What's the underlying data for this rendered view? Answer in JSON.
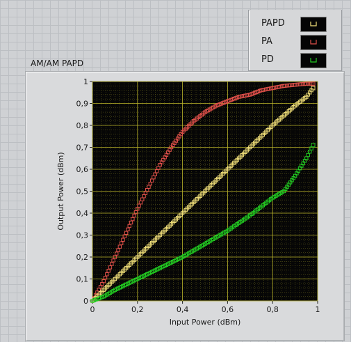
{
  "legend": {
    "items": [
      {
        "label": "PAPD",
        "color": "#f2e07a"
      },
      {
        "label": "PA",
        "color": "#e0504a"
      },
      {
        "label": "PD",
        "color": "#22cc22"
      }
    ]
  },
  "chart_data": {
    "type": "scatter",
    "title": "AM/AM PAPD",
    "xlabel": "Input Power (dBm)",
    "ylabel": "Output Power (dBm)",
    "xlim": [
      0,
      1
    ],
    "ylim": [
      0,
      1
    ],
    "grid": true,
    "legend_position": "top-right",
    "x_ticks": [
      "0",
      "0,2",
      "0,4",
      "0,6",
      "0,8",
      "1"
    ],
    "y_ticks": [
      "0",
      "0,1",
      "0,2",
      "0,3",
      "0,4",
      "0,5",
      "0,6",
      "0,7",
      "0,8",
      "0,9",
      "1"
    ],
    "series": [
      {
        "name": "PA",
        "color": "#e0504a",
        "points": [
          [
            0,
            0
          ],
          [
            0.05,
            0.09
          ],
          [
            0.1,
            0.2
          ],
          [
            0.15,
            0.31
          ],
          [
            0.2,
            0.42
          ],
          [
            0.25,
            0.52
          ],
          [
            0.3,
            0.62
          ],
          [
            0.35,
            0.7
          ],
          [
            0.4,
            0.77
          ],
          [
            0.45,
            0.82
          ],
          [
            0.5,
            0.86
          ],
          [
            0.55,
            0.89
          ],
          [
            0.6,
            0.91
          ],
          [
            0.65,
            0.93
          ],
          [
            0.7,
            0.94
          ],
          [
            0.75,
            0.96
          ],
          [
            0.8,
            0.97
          ],
          [
            0.85,
            0.98
          ],
          [
            0.9,
            0.985
          ],
          [
            0.95,
            0.99
          ],
          [
            0.98,
            0.99
          ]
        ]
      },
      {
        "name": "PAPD",
        "color": "#f2e07a",
        "points": [
          [
            0,
            0
          ],
          [
            0.1,
            0.1
          ],
          [
            0.2,
            0.2
          ],
          [
            0.3,
            0.3
          ],
          [
            0.4,
            0.4
          ],
          [
            0.5,
            0.5
          ],
          [
            0.6,
            0.6
          ],
          [
            0.7,
            0.7
          ],
          [
            0.8,
            0.8
          ],
          [
            0.9,
            0.89
          ],
          [
            0.95,
            0.93
          ],
          [
            0.98,
            0.97
          ]
        ]
      },
      {
        "name": "PD",
        "color": "#22cc22",
        "points": [
          [
            0,
            0
          ],
          [
            0.05,
            0.02
          ],
          [
            0.1,
            0.05
          ],
          [
            0.2,
            0.1
          ],
          [
            0.3,
            0.15
          ],
          [
            0.4,
            0.2
          ],
          [
            0.5,
            0.26
          ],
          [
            0.6,
            0.32
          ],
          [
            0.7,
            0.39
          ],
          [
            0.75,
            0.43
          ],
          [
            0.8,
            0.47
          ],
          [
            0.85,
            0.5
          ],
          [
            0.9,
            0.57
          ],
          [
            0.95,
            0.65
          ],
          [
            0.98,
            0.71
          ]
        ]
      }
    ]
  }
}
